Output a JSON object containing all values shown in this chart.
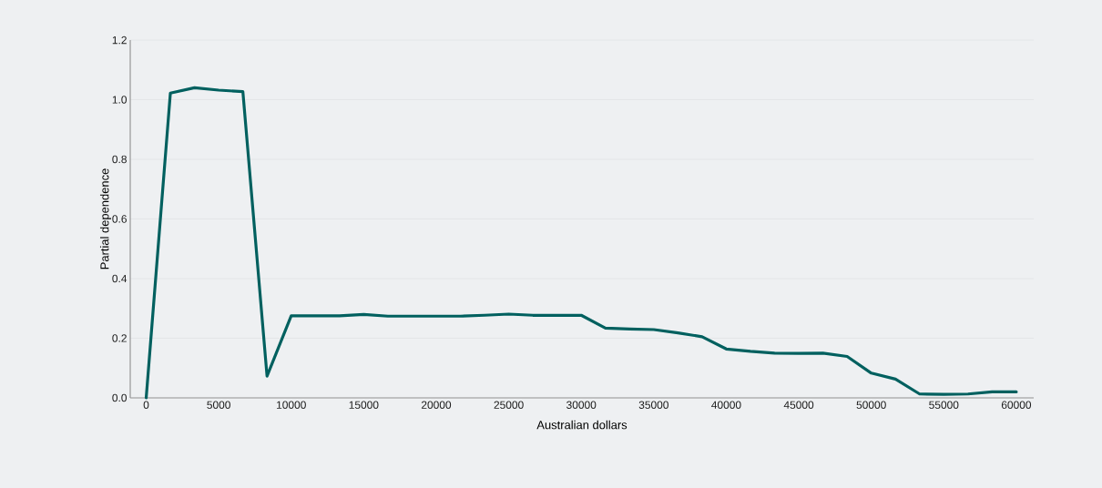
{
  "chart_data": {
    "type": "line",
    "xlabel": "Australian dollars",
    "ylabel": "Partial dependence",
    "x": [
      0,
      1667,
      3333,
      5000,
      6667,
      8333,
      10000,
      11667,
      13333,
      15000,
      16667,
      18333,
      20000,
      21667,
      23333,
      25000,
      26667,
      28333,
      30000,
      31667,
      33333,
      35000,
      36667,
      38333,
      40000,
      41667,
      43333,
      45000,
      46667,
      48333,
      50000,
      51667,
      53333,
      55000,
      56667,
      58333,
      60000
    ],
    "series": [
      {
        "color": "#00605f",
        "values": [
          0.0,
          1.022,
          1.04,
          1.032,
          1.027,
          0.073,
          0.275,
          0.275,
          0.275,
          0.28,
          0.274,
          0.274,
          0.274,
          0.274,
          0.277,
          0.281,
          0.277,
          0.277,
          0.277,
          0.234,
          0.231,
          0.229,
          0.218,
          0.205,
          0.164,
          0.156,
          0.15,
          0.149,
          0.15,
          0.139,
          0.083,
          0.063,
          0.013,
          0.012,
          0.013,
          0.02,
          0.02
        ]
      }
    ],
    "xlim": [
      -1100,
      61200
    ],
    "ylim": [
      0,
      1.2
    ],
    "xticks": [
      0,
      5000,
      10000,
      15000,
      20000,
      25000,
      30000,
      35000,
      40000,
      45000,
      50000,
      55000,
      60000
    ],
    "yticks": [
      {
        "value": 0,
        "label": "0.0"
      },
      {
        "value": 0.2,
        "label": "0.2"
      },
      {
        "value": 0.4,
        "label": "0.4"
      },
      {
        "value": 0.6,
        "label": "0.6"
      },
      {
        "value": 0.8,
        "label": "0.8"
      },
      {
        "value": 1.0,
        "label": "1.0"
      },
      {
        "value": 1.2,
        "label": "1.2"
      }
    ],
    "grid": "y",
    "legend": false,
    "marker": "none",
    "line_style": "solid"
  }
}
